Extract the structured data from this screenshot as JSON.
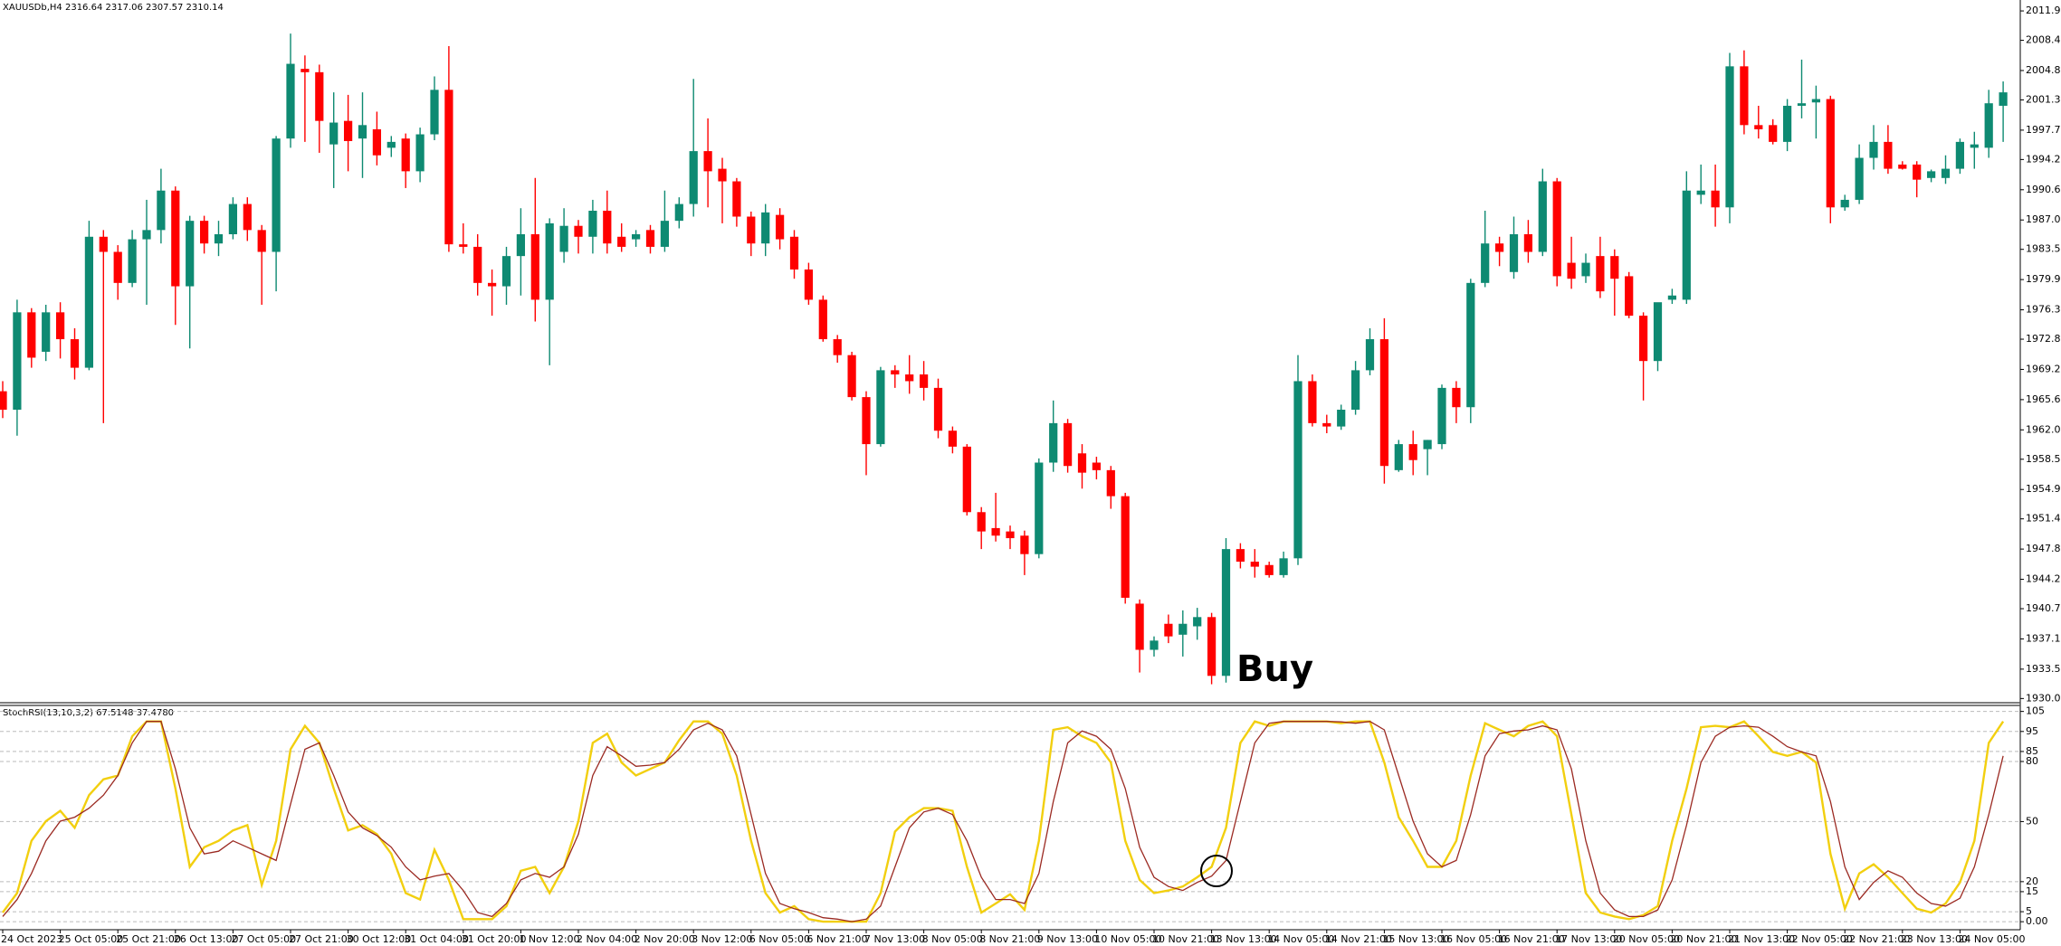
{
  "chart_data": [
    {
      "type": "candlestick",
      "title": "XAUUSDb,H4  2316.64 2317.06 2307.57 2310.14",
      "annotation": "Buy",
      "up_color": "#0e8a72",
      "down_color": "#ff0000",
      "categories": [
        "24 Oct 2023",
        null,
        null,
        null,
        "25 Oct 05:00",
        null,
        null,
        null,
        "25 Oct 21:00",
        null,
        null,
        null,
        "26 Oct 13:00",
        null,
        null,
        null,
        "27 Oct 05:00",
        null,
        null,
        null,
        "27 Oct 21:00",
        null,
        null,
        null,
        "30 Oct 12:00",
        null,
        null,
        null,
        "31 Oct 04:00",
        null,
        null,
        null,
        "31 Oct 20:00",
        null,
        null,
        null,
        "1 Nov 12:00",
        null,
        null,
        null,
        "2 Nov 04:00",
        null,
        null,
        null,
        "2 Nov 20:00",
        null,
        null,
        null,
        "3 Nov 12:00",
        null,
        null,
        null,
        "6 Nov 05:00",
        null,
        null,
        null,
        "6 Nov 21:00",
        null,
        null,
        null,
        "7 Nov 13:00",
        null,
        null,
        null,
        "8 Nov 05:00",
        null,
        null,
        null,
        "8 Nov 21:00",
        null,
        null,
        null,
        "9 Nov 13:00",
        null,
        null,
        null,
        "10 Nov 05:00",
        null,
        null,
        null,
        "10 Nov 21:00",
        null,
        null,
        null,
        "13 Nov 13:00",
        null,
        null,
        null,
        "14 Nov 05:00",
        null,
        null,
        null,
        "14 Nov 21:00",
        null,
        null,
        null,
        "15 Nov 13:00",
        null,
        null,
        null,
        "16 Nov 05:00",
        null,
        null,
        null,
        "16 Nov 21:00",
        null,
        null,
        null,
        "17 Nov 13:00",
        null,
        null,
        null,
        "20 Nov 05:00",
        null,
        null,
        null,
        "20 Nov 21:00",
        null,
        null,
        null,
        "21 Nov 13:00",
        null,
        null,
        null,
        "22 Nov 05:00",
        null,
        null,
        null,
        "22 Nov 21:00",
        null,
        null,
        null,
        "23 Nov 13:00",
        null,
        null,
        null,
        "24 Nov 05:00",
        null,
        null,
        null
      ],
      "open": [
        1966.6,
        1964.4,
        1976.0,
        1971.3,
        1976.0,
        1972.8,
        1969.4,
        1985.0,
        1983.2,
        1979.5,
        1984.7,
        1985.8,
        1990.5,
        1979.1,
        1986.9,
        1984.2,
        1985.3,
        1988.9,
        1985.8,
        1983.2,
        1996.7,
        2005.0,
        2004.6,
        1996.0,
        1998.8,
        1996.7,
        1997.8,
        1995.6,
        1996.7,
        1992.8,
        1997.2,
        2002.5,
        1984.1,
        1983.8,
        1979.5,
        1979.1,
        1982.7,
        1985.3,
        1977.5,
        1983.2,
        1986.3,
        1985.0,
        1988.1,
        1985.0,
        1984.7,
        1985.8,
        1983.8,
        1986.9,
        1988.9,
        1995.2,
        1993.1,
        1991.6,
        1987.4,
        1984.2,
        1987.6,
        1985.0,
        1981.1,
        1977.5,
        1972.8,
        1970.9,
        1965.9,
        1960.3,
        1969.1,
        1968.6,
        1968.6,
        1967.0,
        1961.9,
        1960.0,
        1952.2,
        1950.3,
        1949.9,
        1949.4,
        1947.2,
        1958.1,
        1962.8,
        1959.2,
        1958.1,
        1957.2,
        1954.1,
        1941.3,
        1935.8,
        1938.9,
        1937.6,
        1938.6,
        1939.7,
        1932.7,
        1947.8,
        1946.3,
        1945.9,
        1944.7,
        1946.7,
        1967.8,
        1962.8,
        1962.4,
        1964.4,
        1969.1,
        1972.8,
        1957.2,
        1960.3,
        1959.7,
        1960.3,
        1967.0,
        1964.7,
        1979.5,
        1984.2,
        1980.8,
        1985.3,
        1983.2,
        1991.6,
        1981.9,
        1980.3,
        1982.7,
        1982.7,
        1980.3,
        1975.6,
        1970.2,
        1977.5,
        1977.5,
        1990.0,
        1990.5,
        1988.5,
        2005.3,
        1998.3,
        1998.3,
        1996.3,
        2000.6,
        2001.0,
        2001.4,
        1988.5,
        1989.4,
        1994.4,
        1996.3,
        1993.6,
        1993.6,
        1992.0,
        1992.0,
        1993.1,
        1995.6,
        1995.6,
        2000.6
      ],
      "high": [
        1967.8,
        1977.5,
        1976.5,
        1976.9,
        1977.2,
        1974.1,
        1986.9,
        1985.8,
        1984.0,
        1985.8,
        1989.4,
        1993.1,
        1991.0,
        1987.5,
        1987.5,
        1986.9,
        1989.7,
        1989.7,
        1986.4,
        1997.0,
        2009.2,
        2006.6,
        2005.5,
        2002.2,
        2001.9,
        2002.2,
        1999.9,
        1997.0,
        1997.3,
        1998.0,
        2004.1,
        2007.7,
        1986.6,
        1985.3,
        1981.1,
        1983.8,
        1988.4,
        1992.0,
        1987.2,
        1988.4,
        1987.0,
        1989.4,
        1990.5,
        1986.6,
        1985.8,
        1986.4,
        1990.5,
        1989.7,
        2003.8,
        1999.1,
        1994.4,
        1992.0,
        1988.0,
        1988.9,
        1988.4,
        1985.8,
        1981.9,
        1978.0,
        1973.3,
        1971.3,
        1966.6,
        1969.5,
        1969.7,
        1970.9,
        1970.2,
        1968.1,
        1962.4,
        1960.3,
        1952.8,
        1954.5,
        1950.6,
        1950.0,
        1958.6,
        1965.5,
        1963.3,
        1960.3,
        1958.8,
        1957.7,
        1954.5,
        1941.8,
        1937.4,
        1940.0,
        1940.5,
        1940.8,
        1940.2,
        1949.1,
        1948.5,
        1947.8,
        1946.3,
        1947.5,
        1970.9,
        1968.6,
        1963.8,
        1965.0,
        1970.2,
        1974.1,
        1975.3,
        1960.8,
        1961.9,
        1960.8,
        1967.4,
        1967.8,
        1980.0,
        1988.1,
        1985.0,
        1987.4,
        1987.0,
        1993.1,
        1992.0,
        1985.0,
        1983.0,
        1985.0,
        1983.5,
        1980.8,
        1976.0,
        1977.0,
        1978.8,
        1992.8,
        1993.6,
        1993.6,
        2006.9,
        2007.2,
        2000.6,
        1999.0,
        2001.4,
        2006.1,
        2003.0,
        2001.8,
        1990.0,
        1996.0,
        1998.3,
        1998.3,
        1994.0,
        1994.0,
        1993.0,
        1994.7,
        1996.7,
        1997.5,
        2002.5,
        2003.5
      ],
      "low": [
        1963.4,
        1961.3,
        1969.4,
        1970.2,
        1970.5,
        1968.0,
        1969.1,
        1962.8,
        1977.5,
        1979.0,
        1976.9,
        1984.2,
        1974.5,
        1971.7,
        1983.0,
        1982.7,
        1984.7,
        1984.5,
        1976.9,
        1978.5,
        1995.6,
        1996.3,
        1995.0,
        1990.8,
        1992.8,
        1992.0,
        1993.5,
        1994.5,
        1990.8,
        1991.5,
        1996.5,
        1983.2,
        1983.0,
        1978.0,
        1975.6,
        1976.9,
        1978.0,
        1974.9,
        1969.7,
        1981.9,
        1983.0,
        1983.0,
        1983.0,
        1983.2,
        1983.8,
        1983.0,
        1983.2,
        1986.0,
        1987.4,
        1988.5,
        1986.6,
        1986.2,
        1982.7,
        1982.7,
        1983.5,
        1980.0,
        1976.9,
        1972.5,
        1970.0,
        1965.5,
        1956.6,
        1960.0,
        1967.0,
        1966.3,
        1965.5,
        1961.0,
        1959.2,
        1951.8,
        1947.8,
        1948.7,
        1947.8,
        1944.7,
        1946.7,
        1957.0,
        1956.9,
        1955.0,
        1956.1,
        1952.6,
        1941.3,
        1933.1,
        1935.0,
        1936.6,
        1935.0,
        1937.0,
        1931.7,
        1931.9,
        1945.5,
        1944.4,
        1944.4,
        1944.4,
        1945.9,
        1962.4,
        1961.6,
        1962.0,
        1963.8,
        1968.5,
        1955.6,
        1957.0,
        1956.6,
        1956.6,
        1959.7,
        1962.8,
        1962.8,
        1979.0,
        1981.5,
        1980.0,
        1981.9,
        1982.7,
        1979.1,
        1978.8,
        1979.5,
        1977.7,
        1975.6,
        1975.3,
        1965.5,
        1969.0,
        1977.0,
        1977.0,
        1988.9,
        1986.2,
        1986.6,
        1997.2,
        1996.7,
        1996.0,
        1995.2,
        1999.1,
        1996.7,
        1986.6,
        1988.1,
        1988.9,
        1993.0,
        1992.5,
        1993.0,
        1989.7,
        1991.5,
        1991.3,
        1992.5,
        1993.1,
        1994.4,
        1996.3
      ],
      "close": [
        1964.4,
        1976.0,
        1970.6,
        1976.0,
        1972.8,
        1969.4,
        1985.0,
        1983.2,
        1979.5,
        1984.7,
        1985.8,
        1990.5,
        1979.1,
        1986.9,
        1984.2,
        1985.3,
        1988.9,
        1985.8,
        1983.2,
        1996.7,
        2005.6,
        2004.6,
        1998.8,
        1998.6,
        1996.4,
        1998.3,
        1994.7,
        1996.3,
        1992.8,
        1997.2,
        2002.5,
        1984.1,
        1983.8,
        1979.5,
        1979.1,
        1982.7,
        1985.3,
        1977.5,
        1986.6,
        1986.3,
        1985.0,
        1988.1,
        1984.2,
        1983.8,
        1985.3,
        1983.8,
        1986.9,
        1988.9,
        1995.2,
        1992.8,
        1991.6,
        1987.4,
        1984.2,
        1987.9,
        1984.7,
        1981.1,
        1977.5,
        1972.8,
        1970.9,
        1965.9,
        1960.3,
        1969.1,
        1968.6,
        1967.8,
        1967.0,
        1961.9,
        1960.0,
        1952.2,
        1949.9,
        1949.4,
        1949.1,
        1947.2,
        1958.1,
        1962.8,
        1957.7,
        1956.9,
        1957.2,
        1954.1,
        1942.0,
        1935.8,
        1936.9,
        1937.4,
        1938.9,
        1939.7,
        1932.7,
        1947.8,
        1946.3,
        1945.7,
        1944.7,
        1946.7,
        1967.8,
        1962.8,
        1962.4,
        1964.4,
        1969.1,
        1972.8,
        1957.7,
        1960.3,
        1958.4,
        1960.8,
        1967.0,
        1964.7,
        1979.5,
        1984.2,
        1983.2,
        1985.3,
        1983.2,
        1991.6,
        1980.3,
        1980.0,
        1981.9,
        1978.5,
        1980.0,
        1975.6,
        1970.2,
        1977.2,
        1978.0,
        1990.5,
        1990.5,
        1988.5,
        2005.3,
        1998.3,
        1997.8,
        1996.3,
        2000.6,
        2000.9,
        2001.4,
        1988.5,
        1989.4,
        1994.4,
        1996.3,
        1993.1,
        1993.1,
        1991.8,
        1992.8,
        1993.1,
        1996.3,
        1996.0,
        2000.9,
        2002.2
      ],
      "ylim": [
        1929.5,
        2013.2
      ],
      "yticks": [
        {
          "value": 2011.9,
          "label": "2011.90"
        },
        {
          "value": 2008.4,
          "label": "2008.40"
        },
        {
          "value": 2004.8,
          "label": "2004.80"
        },
        {
          "value": 2001.3,
          "label": "2001.30"
        },
        {
          "value": 1997.7,
          "label": "1997.70"
        },
        {
          "value": 1994.2,
          "label": "1994.20"
        },
        {
          "value": 1990.6,
          "label": "1990.60"
        },
        {
          "value": 1987.0,
          "label": "1987.00"
        },
        {
          "value": 1983.5,
          "label": "1983.50"
        },
        {
          "value": 1979.9,
          "label": "1979.90"
        },
        {
          "value": 1976.3,
          "label": "1976.30"
        },
        {
          "value": 1972.8,
          "label": "1972.80"
        },
        {
          "value": 1969.2,
          "label": "1969.20"
        },
        {
          "value": 1965.6,
          "label": "1965.60"
        },
        {
          "value": 1962.0,
          "label": "1962.00"
        },
        {
          "value": 1958.5,
          "label": "1958.50"
        },
        {
          "value": 1954.9,
          "label": "1954.90"
        },
        {
          "value": 1951.4,
          "label": "1951.40"
        },
        {
          "value": 1947.8,
          "label": "1947.80"
        },
        {
          "value": 1944.2,
          "label": "1944.20"
        },
        {
          "value": 1940.7,
          "label": "1940.70"
        },
        {
          "value": 1937.1,
          "label": "1937.10"
        },
        {
          "value": 1933.5,
          "label": "1933.50"
        },
        {
          "value": 1930.0,
          "label": "1930.00"
        }
      ],
      "grid": false
    },
    {
      "type": "line",
      "title": "StochRSI(13,10,3,2) 67.5148 37.4780",
      "series": [
        {
          "color": "#f2cf0f",
          "values": [
            4.6,
            14.3,
            40.4,
            50.2,
            55.4,
            46.9,
            63.2,
            71.1,
            73.0,
            92.6,
            100,
            100,
            66.5,
            27.4,
            37.2,
            40.4,
            45.6,
            48.2,
            18.3,
            40.4,
            86.1,
            97.8,
            89.3,
            66.5,
            45.6,
            48.2,
            43.7,
            33.9,
            14.3,
            11.1,
            35.9,
            20.9,
            1.3,
            1.3,
            1.3,
            7.8,
            25.4,
            27.4,
            14.3,
            27.4,
            50.2,
            89.3,
            93.9,
            79.5,
            73.0,
            76.3,
            79.5,
            90.6,
            100,
            100,
            93.9,
            73.0,
            40.4,
            14.3,
            4.6,
            7.8,
            1.3,
            0,
            0,
            0,
            0,
            14.3,
            45.0,
            52.2,
            56.7,
            56.7,
            55.4,
            27.4,
            4.6,
            9.1,
            13.7,
            5.9,
            40.4,
            95.8,
            97.1,
            92.6,
            89.3,
            79.5,
            40.4,
            20.9,
            14.3,
            15.6,
            17.6,
            22.2,
            27.4,
            46.9,
            89.3,
            100,
            97.8,
            100,
            100,
            100,
            100,
            99.1,
            100,
            100,
            79.5,
            52.2,
            40.4,
            27.4,
            27.4,
            40.4,
            73.0,
            99.1,
            95.8,
            92.6,
            97.8,
            100,
            92.6,
            53.5,
            14.3,
            4.6,
            2.6,
            1.3,
            3.3,
            7.8,
            40.4,
            66.5,
            97.1,
            97.8,
            97.1,
            100,
            92.6,
            84.8,
            82.8,
            84.8,
            79.5,
            33.9,
            6.5,
            24.1,
            28.7,
            22.2,
            14.3,
            6.5,
            4.6,
            9.1,
            19.6,
            40.4,
            89.3,
            100
          ]
        },
        {
          "color": "#9b2a22",
          "values": [
            2.6,
            11.1,
            24.1,
            40.4,
            50.2,
            52.2,
            56.7,
            63.2,
            73.0,
            89.3,
            100,
            100,
            76.3,
            46.9,
            33.9,
            35.2,
            40.4,
            37.2,
            33.9,
            30.6,
            58.7,
            86.1,
            89.3,
            73.0,
            54.8,
            46.9,
            43.0,
            37.2,
            27.4,
            20.9,
            22.8,
            24.1,
            15.6,
            4.6,
            2.6,
            9.1,
            20.9,
            24.1,
            22.2,
            27.4,
            43.7,
            73.0,
            87.4,
            82.8,
            77.6,
            78.2,
            79.5,
            86.1,
            95.8,
            99.1,
            95.8,
            82.8,
            53.5,
            24.1,
            9.1,
            6.5,
            4.6,
            2.0,
            1.3,
            0,
            1.3,
            7.8,
            27.4,
            46.9,
            54.8,
            56.7,
            53.5,
            40.4,
            22.2,
            11.1,
            11.1,
            9.1,
            24.1,
            60.0,
            89.3,
            95.2,
            92.6,
            86.1,
            66.5,
            37.2,
            22.2,
            17.6,
            15.6,
            19.6,
            22.8,
            30.6,
            60.0,
            89.3,
            99.1,
            100,
            100,
            100,
            100,
            99.8,
            99.1,
            100,
            95.8,
            73.0,
            50.2,
            33.9,
            27.4,
            30.6,
            53.5,
            82.8,
            93.9,
            95.2,
            95.8,
            97.8,
            95.8,
            76.3,
            40.4,
            14.3,
            5.9,
            2.6,
            2.6,
            5.9,
            20.9,
            48.2,
            79.5,
            92.6,
            97.1,
            97.8,
            97.1,
            92.6,
            87.4,
            84.8,
            82.8,
            60.0,
            27.4,
            11.1,
            19.6,
            25.4,
            22.2,
            14.3,
            9.1,
            7.8,
            11.7,
            27.4,
            53.5,
            82.8
          ]
        }
      ],
      "ylim": [
        -4,
        108
      ],
      "yticks": [
        105,
        95,
        85,
        80,
        50,
        20,
        15,
        5,
        {
          "value": 0,
          "label": "0.00"
        }
      ],
      "grid": true
    }
  ]
}
